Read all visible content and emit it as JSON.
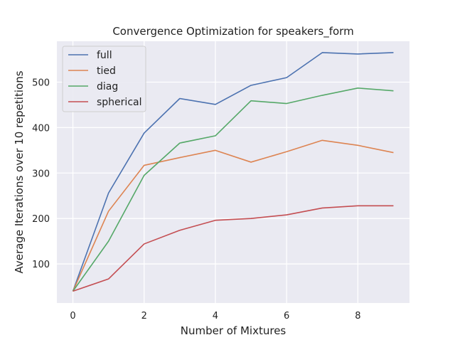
{
  "chart_data": {
    "type": "line",
    "title": "Convergence Optimization for speakers_form",
    "xlabel": "Number of Mixtures",
    "ylabel": "Average Iterations over 10 repetitions",
    "x": [
      0,
      1,
      2,
      3,
      4,
      5,
      6,
      7,
      8,
      9
    ],
    "xlim": [
      -0.45,
      9.45
    ],
    "ylim": [
      14,
      590
    ],
    "xticks": [
      0,
      2,
      4,
      6,
      8
    ],
    "yticks": [
      100,
      200,
      300,
      400,
      500
    ],
    "grid": true,
    "legend_position": "top-left",
    "background": "#eaeaf2",
    "series": [
      {
        "name": "full",
        "color": "#4c72b0",
        "values": [
          40,
          256,
          388,
          464,
          451,
          493,
          510,
          565,
          562,
          565
        ]
      },
      {
        "name": "tied",
        "color": "#dd8452",
        "values": [
          40,
          216,
          317,
          334,
          350,
          324,
          347,
          372,
          361,
          345
        ]
      },
      {
        "name": "diag",
        "color": "#55a868",
        "values": [
          40,
          150,
          295,
          366,
          382,
          459,
          453,
          471,
          487,
          481
        ]
      },
      {
        "name": "spherical",
        "color": "#c44e52",
        "values": [
          40,
          67,
          144,
          174,
          196,
          200,
          208,
          223,
          228,
          228
        ]
      }
    ]
  }
}
